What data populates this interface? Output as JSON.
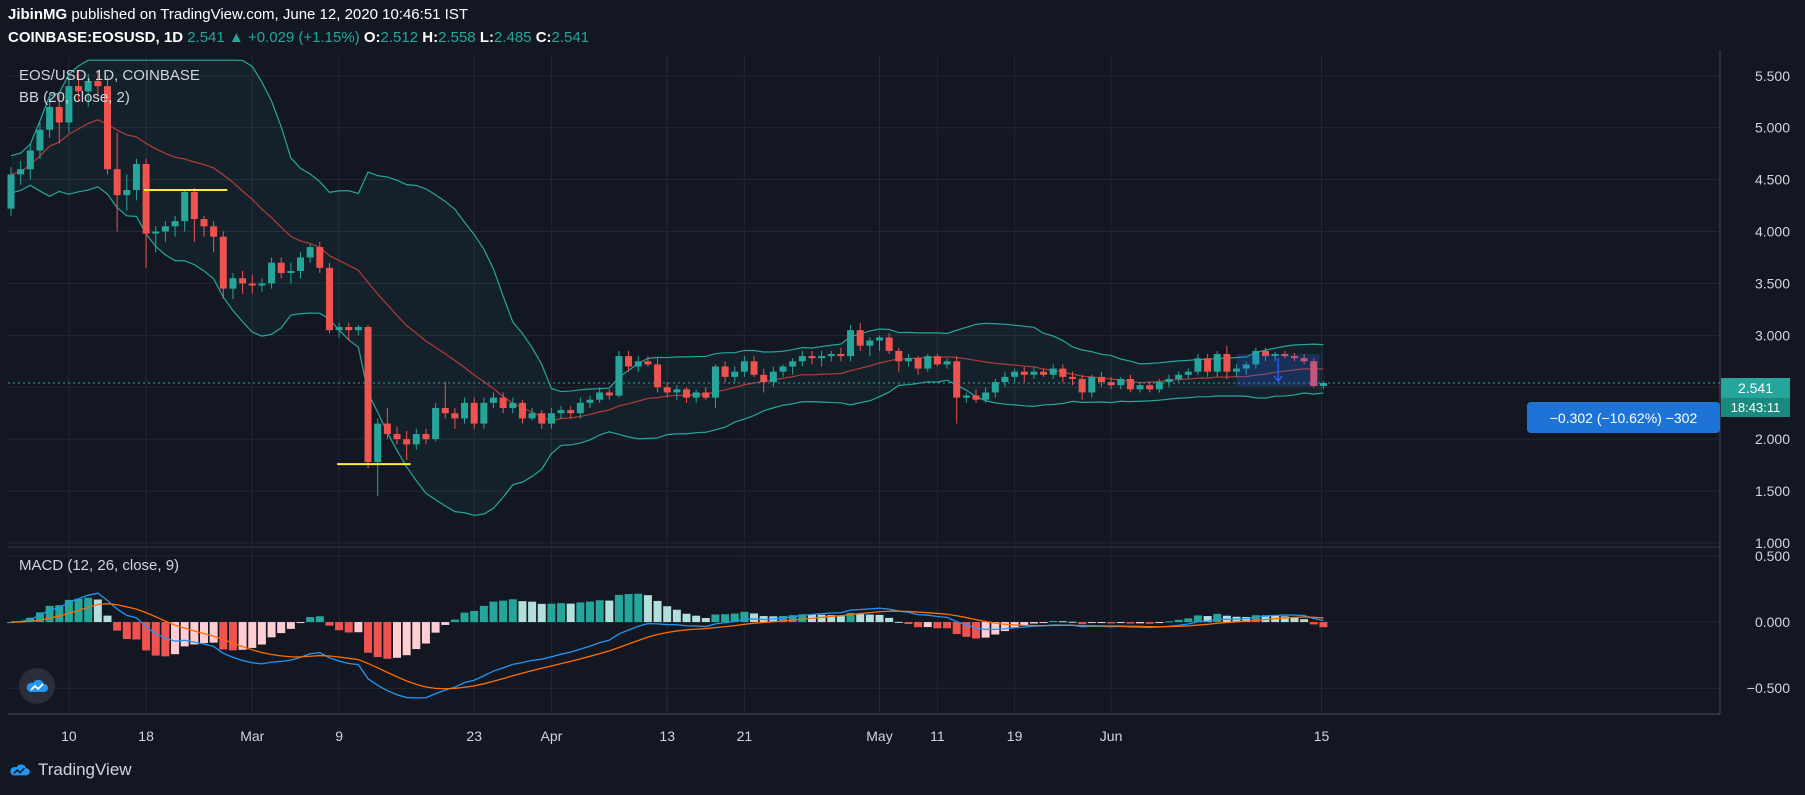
{
  "header": {
    "publisher": "JibinMG",
    "published_text": "published on TradingView.com, June 12, 2020 10:46:51 IST",
    "symbol": "COINBASE:EOSUSD, 1D",
    "last": "2.541",
    "change": "+0.029 (+1.15%)",
    "o_label": "O:",
    "o": "2.512",
    "h_label": "H:",
    "h": "2.558",
    "l_label": "L:",
    "l": "2.485",
    "c_label": "C:",
    "c": "2.541"
  },
  "main_pane": {
    "title": "EOS/USD, 1D, COINBASE",
    "indicator": "BB (20, close, 2)"
  },
  "macd_pane": {
    "indicator": "MACD (12, 26, close, 9)"
  },
  "price_tag": "2.541",
  "countdown_tag": "18:43:11",
  "measure_label": "−0.302 (−10.62%) −302",
  "brand": "TradingView",
  "colors": {
    "background": "#131722",
    "up": "#26a69a",
    "down": "#ef5350",
    "bb_band": "#26a69a",
    "bb_basis": "#b33b3b",
    "macd_line": "#2196f3",
    "signal_line": "#ff6d00",
    "support_line": "#ffeb3b"
  },
  "chart_data": [
    {
      "type": "candlestick",
      "title": "EOS/USD, 1D, COINBASE",
      "y_ticks": [
        "5.500",
        "5.000",
        "4.500",
        "4.000",
        "3.500",
        "3.000",
        "2.500",
        "2.000",
        "1.500",
        "1.000"
      ],
      "ylim": [
        1.0,
        5.7
      ],
      "x_ticks": [
        "10",
        "18",
        "Mar",
        "9",
        "23",
        "Apr",
        "13",
        "21",
        "May",
        "11",
        "19",
        "Jun",
        "15"
      ],
      "candles": [
        [
          4.22,
          4.62,
          4.15,
          4.55
        ],
        [
          4.55,
          4.68,
          4.45,
          4.6
        ],
        [
          4.6,
          4.85,
          4.5,
          4.78
        ],
        [
          4.78,
          5.05,
          4.7,
          4.98
        ],
        [
          4.98,
          5.3,
          4.9,
          5.2
        ],
        [
          5.2,
          5.32,
          4.85,
          5.05
        ],
        [
          5.05,
          5.5,
          4.95,
          5.4
        ],
        [
          5.4,
          5.55,
          5.25,
          5.35
        ],
        [
          5.35,
          5.52,
          5.2,
          5.45
        ],
        [
          5.45,
          5.55,
          5.3,
          5.4
        ],
        [
          5.4,
          5.5,
          4.55,
          4.6
        ],
        [
          4.6,
          4.95,
          4.0,
          4.35
        ],
        [
          4.35,
          4.55,
          4.2,
          4.4
        ],
        [
          4.4,
          4.7,
          4.3,
          4.65
        ],
        [
          4.65,
          4.7,
          3.65,
          3.98
        ],
        [
          3.98,
          4.05,
          3.8,
          4.0
        ],
        [
          4.0,
          4.1,
          3.9,
          4.05
        ],
        [
          4.05,
          4.15,
          3.95,
          4.1
        ],
        [
          4.1,
          4.4,
          4.0,
          4.38
        ],
        [
          4.38,
          4.42,
          3.9,
          4.12
        ],
        [
          4.12,
          4.15,
          3.95,
          4.05
        ],
        [
          4.05,
          4.1,
          3.8,
          3.95
        ],
        [
          3.95,
          4.0,
          3.35,
          3.45
        ],
        [
          3.45,
          3.6,
          3.35,
          3.55
        ],
        [
          3.55,
          3.62,
          3.4,
          3.5
        ],
        [
          3.5,
          3.58,
          3.4,
          3.48
        ],
        [
          3.48,
          3.55,
          3.42,
          3.5
        ],
        [
          3.5,
          3.75,
          3.45,
          3.7
        ],
        [
          3.7,
          3.75,
          3.55,
          3.6
        ],
        [
          3.6,
          3.7,
          3.5,
          3.62
        ],
        [
          3.62,
          3.8,
          3.55,
          3.75
        ],
        [
          3.75,
          3.88,
          3.7,
          3.85
        ],
        [
          3.85,
          3.9,
          3.6,
          3.65
        ],
        [
          3.65,
          3.7,
          3.02,
          3.05
        ],
        [
          3.05,
          3.12,
          2.98,
          3.08
        ],
        [
          3.08,
          3.12,
          2.95,
          3.05
        ],
        [
          3.05,
          3.1,
          3.0,
          3.08
        ],
        [
          3.08,
          3.1,
          1.72,
          1.78
        ],
        [
          1.78,
          2.2,
          1.45,
          2.15
        ],
        [
          2.15,
          2.3,
          2.0,
          2.05
        ],
        [
          2.05,
          2.12,
          1.95,
          2.0
        ],
        [
          2.0,
          2.08,
          1.8,
          1.95
        ],
        [
          1.95,
          2.1,
          1.9,
          2.05
        ],
        [
          2.05,
          2.1,
          1.95,
          2.0
        ],
        [
          2.0,
          2.35,
          1.98,
          2.3
        ],
        [
          2.3,
          2.55,
          2.2,
          2.25
        ],
        [
          2.25,
          2.3,
          2.1,
          2.2
        ],
        [
          2.2,
          2.4,
          2.15,
          2.35
        ],
        [
          2.35,
          2.4,
          2.1,
          2.15
        ],
        [
          2.15,
          2.4,
          2.1,
          2.35
        ],
        [
          2.35,
          2.45,
          2.3,
          2.4
        ],
        [
          2.4,
          2.45,
          2.25,
          2.3
        ],
        [
          2.3,
          2.4,
          2.25,
          2.35
        ],
        [
          2.35,
          2.38,
          2.15,
          2.2
        ],
        [
          2.2,
          2.3,
          2.18,
          2.25
        ],
        [
          2.25,
          2.28,
          2.1,
          2.15
        ],
        [
          2.15,
          2.3,
          2.1,
          2.25
        ],
        [
          2.25,
          2.32,
          2.2,
          2.28
        ],
        [
          2.28,
          2.32,
          2.2,
          2.25
        ],
        [
          2.25,
          2.4,
          2.2,
          2.35
        ],
        [
          2.35,
          2.42,
          2.3,
          2.38
        ],
        [
          2.38,
          2.5,
          2.35,
          2.45
        ],
        [
          2.45,
          2.48,
          2.38,
          2.42
        ],
        [
          2.42,
          2.85,
          2.4,
          2.8
        ],
        [
          2.8,
          2.85,
          2.65,
          2.7
        ],
        [
          2.7,
          2.8,
          2.65,
          2.75
        ],
        [
          2.75,
          2.8,
          2.7,
          2.72
        ],
        [
          2.72,
          2.78,
          2.45,
          2.5
        ],
        [
          2.5,
          2.55,
          2.4,
          2.45
        ],
        [
          2.45,
          2.52,
          2.38,
          2.48
        ],
        [
          2.48,
          2.5,
          2.35,
          2.4
        ],
        [
          2.4,
          2.48,
          2.35,
          2.45
        ],
        [
          2.45,
          2.5,
          2.38,
          2.4
        ],
        [
          2.4,
          2.72,
          2.3,
          2.7
        ],
        [
          2.7,
          2.75,
          2.55,
          2.6
        ],
        [
          2.6,
          2.7,
          2.55,
          2.65
        ],
        [
          2.65,
          2.8,
          2.6,
          2.75
        ],
        [
          2.75,
          2.8,
          2.6,
          2.62
        ],
        [
          2.62,
          2.68,
          2.45,
          2.55
        ],
        [
          2.55,
          2.7,
          2.5,
          2.65
        ],
        [
          2.65,
          2.72,
          2.6,
          2.7
        ],
        [
          2.7,
          2.78,
          2.62,
          2.75
        ],
        [
          2.75,
          2.85,
          2.7,
          2.8
        ],
        [
          2.8,
          2.85,
          2.72,
          2.78
        ],
        [
          2.78,
          2.85,
          2.7,
          2.8
        ],
        [
          2.8,
          2.85,
          2.75,
          2.82
        ],
        [
          2.82,
          2.88,
          2.75,
          2.8
        ],
        [
          2.8,
          3.1,
          2.75,
          3.05
        ],
        [
          3.05,
          3.12,
          2.85,
          2.9
        ],
        [
          2.9,
          2.98,
          2.8,
          2.95
        ],
        [
          2.95,
          3.0,
          2.85,
          2.98
        ],
        [
          2.98,
          3.02,
          2.82,
          2.85
        ],
        [
          2.85,
          2.88,
          2.65,
          2.75
        ],
        [
          2.75,
          2.82,
          2.7,
          2.78
        ],
        [
          2.78,
          2.8,
          2.62,
          2.68
        ],
        [
          2.68,
          2.82,
          2.65,
          2.8
        ],
        [
          2.8,
          2.82,
          2.7,
          2.72
        ],
        [
          2.72,
          2.78,
          2.68,
          2.75
        ],
        [
          2.75,
          2.8,
          2.15,
          2.4
        ],
        [
          2.4,
          2.45,
          2.35,
          2.42
        ],
        [
          2.42,
          2.48,
          2.35,
          2.38
        ],
        [
          2.38,
          2.5,
          2.35,
          2.45
        ],
        [
          2.45,
          2.58,
          2.4,
          2.55
        ],
        [
          2.55,
          2.65,
          2.5,
          2.6
        ],
        [
          2.6,
          2.68,
          2.55,
          2.65
        ],
        [
          2.65,
          2.7,
          2.55,
          2.62
        ],
        [
          2.62,
          2.7,
          2.58,
          2.65
        ],
        [
          2.65,
          2.68,
          2.6,
          2.62
        ],
        [
          2.62,
          2.72,
          2.58,
          2.68
        ],
        [
          2.68,
          2.72,
          2.55,
          2.6
        ],
        [
          2.6,
          2.65,
          2.52,
          2.58
        ],
        [
          2.58,
          2.62,
          2.38,
          2.45
        ],
        [
          2.45,
          2.62,
          2.4,
          2.6
        ],
        [
          2.6,
          2.65,
          2.5,
          2.55
        ],
        [
          2.55,
          2.6,
          2.48,
          2.52
        ],
        [
          2.52,
          2.6,
          2.48,
          2.58
        ],
        [
          2.58,
          2.62,
          2.45,
          2.48
        ],
        [
          2.48,
          2.55,
          2.45,
          2.52
        ],
        [
          2.52,
          2.56,
          2.45,
          2.48
        ],
        [
          2.48,
          2.58,
          2.45,
          2.55
        ],
        [
          2.55,
          2.62,
          2.5,
          2.58
        ],
        [
          2.58,
          2.65,
          2.55,
          2.62
        ],
        [
          2.62,
          2.68,
          2.58,
          2.65
        ],
        [
          2.65,
          2.82,
          2.62,
          2.78
        ],
        [
          2.78,
          2.82,
          2.6,
          2.65
        ],
        [
          2.65,
          2.85,
          2.6,
          2.82
        ],
        [
          2.82,
          2.9,
          2.58,
          2.65
        ],
        [
          2.65,
          2.72,
          2.6,
          2.68
        ],
        [
          2.68,
          2.75,
          2.62,
          2.72
        ],
        [
          2.72,
          2.88,
          2.68,
          2.85
        ],
        [
          2.85,
          2.88,
          2.75,
          2.8
        ],
        [
          2.8,
          2.84,
          2.75,
          2.82
        ],
        [
          2.82,
          2.85,
          2.78,
          2.8
        ],
        [
          2.8,
          2.83,
          2.75,
          2.78
        ],
        [
          2.78,
          2.82,
          2.72,
          2.75
        ],
        [
          2.75,
          2.78,
          2.5,
          2.512
        ],
        [
          2.512,
          2.558,
          2.485,
          2.541
        ]
      ],
      "support_lines": [
        {
          "price": 4.4,
          "from_candle": 14,
          "to_candle": 22
        },
        {
          "price": 1.76,
          "from_candle": 34,
          "to_candle": 41
        }
      ],
      "current_price": 2.541
    },
    {
      "type": "bar",
      "title": "MACD (12, 26, close, 9)",
      "y_ticks": [
        "0.500",
        "0.000",
        "−0.500"
      ],
      "ylim": [
        -0.68,
        0.56
      ]
    }
  ]
}
